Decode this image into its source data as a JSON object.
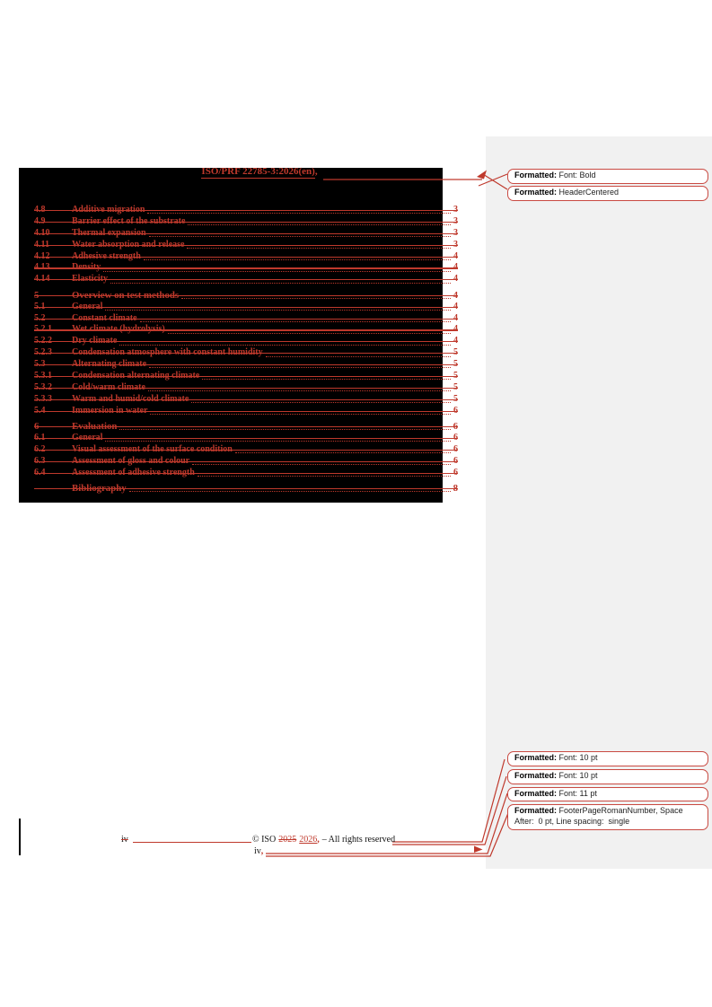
{
  "document": {
    "header": {
      "title": "ISO/PRF 22785-3:2026(en)",
      "revision_mark": ","
    },
    "toc": {
      "entries": [
        {
          "num": "4.8",
          "title": "Additive migration",
          "page": "3",
          "level": 2,
          "gap": false
        },
        {
          "num": "4.9",
          "title": "Barrier effect of the substrate",
          "page": "3",
          "level": 2,
          "gap": false
        },
        {
          "num": "4.10",
          "title": "Thermal expansion",
          "page": "3",
          "level": 2,
          "gap": false
        },
        {
          "num": "4.11",
          "title": "Water absorption and release",
          "page": "3",
          "level": 2,
          "gap": false
        },
        {
          "num": "4.12",
          "title": "Adhesive strength",
          "page": "4",
          "level": 2,
          "gap": false
        },
        {
          "num": "4.13",
          "title": "Density",
          "page": "4",
          "level": 2,
          "gap": false
        },
        {
          "num": "4.14",
          "title": "Elasticity",
          "page": "4",
          "level": 2,
          "gap": false
        },
        {
          "num": "5",
          "title": "Overview on test methods",
          "page": "4",
          "level": 1,
          "gap": true
        },
        {
          "num": "5.1",
          "title": "General",
          "page": "4",
          "level": 2,
          "gap": false
        },
        {
          "num": "5.2",
          "title": "Constant climate",
          "page": "4",
          "level": 2,
          "gap": false
        },
        {
          "num": "5.2.1",
          "title": "Wet climate (hydrolysis)",
          "page": "4",
          "level": 2,
          "gap": false
        },
        {
          "num": "5.2.2",
          "title": "Dry climate",
          "page": "4",
          "level": 2,
          "gap": false
        },
        {
          "num": "5.2.3",
          "title": "Condensation atmosphere with constant humidity",
          "page": "5",
          "level": 2,
          "gap": false
        },
        {
          "num": "5.3",
          "title": "Alternating climate",
          "page": "5",
          "level": 2,
          "gap": false
        },
        {
          "num": "5.3.1",
          "title": "Condensation alternating climate",
          "page": "5",
          "level": 2,
          "gap": false
        },
        {
          "num": "5.3.2",
          "title": "Cold/warm climate",
          "page": "5",
          "level": 2,
          "gap": false
        },
        {
          "num": "5.3.3",
          "title": "Warm and humid/cold climate",
          "page": "5",
          "level": 2,
          "gap": false
        },
        {
          "num": "5.4",
          "title": "Immersion in water",
          "page": "6",
          "level": 2,
          "gap": false
        },
        {
          "num": "6",
          "title": "Evaluation",
          "page": "6",
          "level": 1,
          "gap": true
        },
        {
          "num": "6.1",
          "title": "General",
          "page": "6",
          "level": 2,
          "gap": false
        },
        {
          "num": "6.2",
          "title": "Visual assessment of the surface condition",
          "page": "6",
          "level": 2,
          "gap": false
        },
        {
          "num": "6.3",
          "title": "Assessment of gloss and colour",
          "page": "6",
          "level": 2,
          "gap": false
        },
        {
          "num": "6.4",
          "title": "Assessment of adhesive strength",
          "page": "6",
          "level": 2,
          "gap": false
        },
        {
          "num": "",
          "title": "Bibliography",
          "page": "8",
          "level": 1,
          "gap": true
        }
      ]
    },
    "footer": {
      "deleted_page_number": "iv",
      "copyright": {
        "prefix": "© ISO",
        "deleted_year": "2025",
        "inserted_year": "2026",
        "revision_mark": ",",
        "suffix": "– All rights reserved"
      },
      "page_number": "iv",
      "page_number_mark": ","
    }
  },
  "markup_panel": {
    "header_comments": [
      {
        "label": "Formatted:",
        "value": "Font: Bold"
      },
      {
        "label": "Formatted:",
        "value": "HeaderCentered"
      }
    ],
    "footer_comments": [
      {
        "label": "Formatted:",
        "value": "Font: 10 pt"
      },
      {
        "label": "Formatted:",
        "value": "Font: 10 pt"
      },
      {
        "label": "Formatted:",
        "value": "Font: 11 pt"
      },
      {
        "label": "Formatted:",
        "value": "FooterPageRomanNumber, Space After:  0 pt, Line spacing:  single"
      }
    ]
  },
  "colors": {
    "revision_red": "#bf392c",
    "balloon_border": "#c94a42",
    "markup_area_bg": "#f1f1f1",
    "change_bar": "#000000",
    "page_bg": "#ffffff"
  }
}
